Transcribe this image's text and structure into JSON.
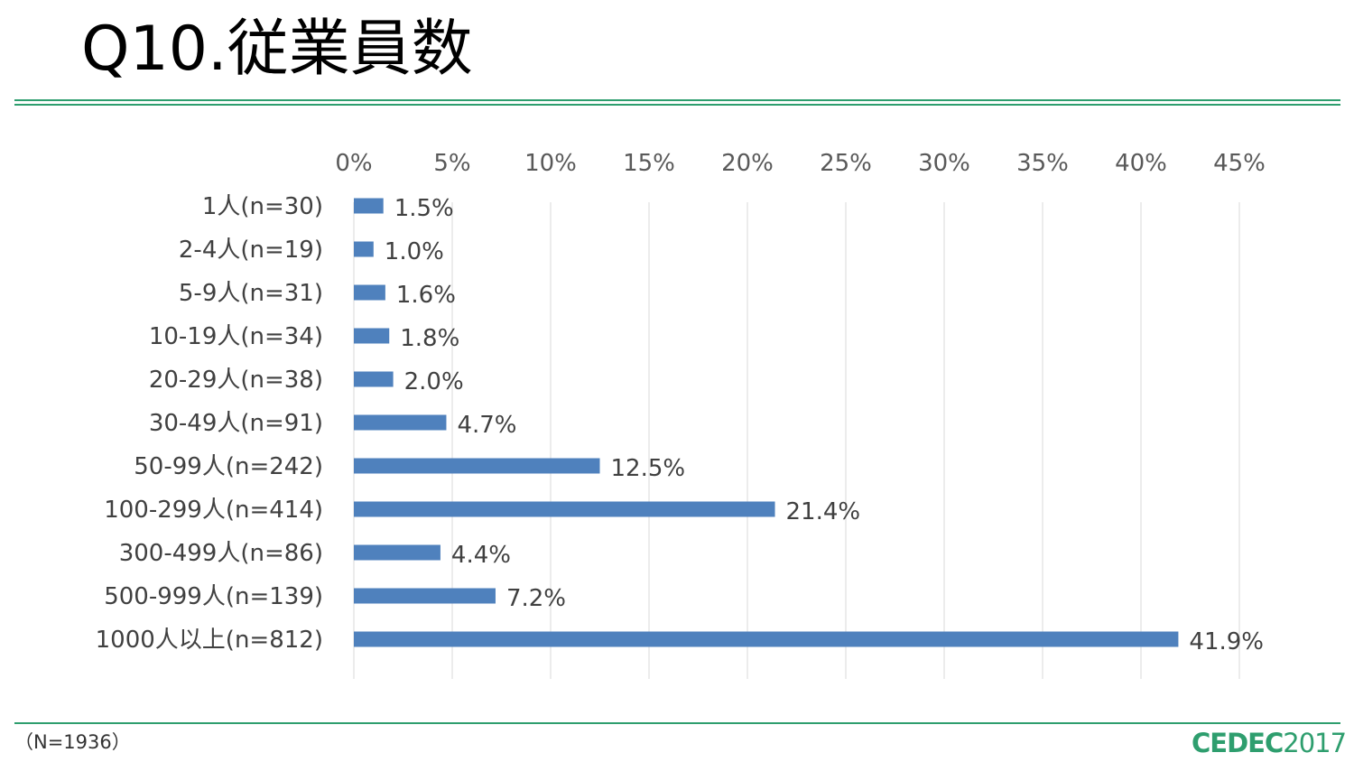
{
  "slide": {
    "title": "Q10.従業員数",
    "sample_note": "（N=1936）",
    "logo_main": "CEDEC",
    "logo_year": "2017",
    "accent_color": "#2e9e6e"
  },
  "chart_data": {
    "type": "bar",
    "orientation": "horizontal",
    "categories": [
      "1人(n=30)",
      "2-4人(n=19)",
      "5-9人(n=31)",
      "10-19人(n=34)",
      "20-29人(n=38)",
      "30-49人(n=91)",
      "50-99人(n=242)",
      "100-299人(n=414)",
      "300-499人(n=86)",
      "500-999人(n=139)",
      "1000人以上(n=812)"
    ],
    "values": [
      1.5,
      1.0,
      1.6,
      1.8,
      2.0,
      4.7,
      12.5,
      21.4,
      4.4,
      7.2,
      41.9
    ],
    "data_labels": [
      "1.5%",
      "1.0%",
      "1.6%",
      "1.8%",
      "2.0%",
      "4.7%",
      "12.5%",
      "21.4%",
      "4.4%",
      "7.2%",
      "41.9%"
    ],
    "x_ticks": [
      "0%",
      "5%",
      "10%",
      "15%",
      "20%",
      "25%",
      "30%",
      "35%",
      "40%",
      "45%"
    ],
    "xlim": [
      0,
      45
    ],
    "x_axis_position": "top",
    "grid": true,
    "legend": "none",
    "bar_color": "#4f81bd",
    "grid_color": "#d9d9d9"
  }
}
